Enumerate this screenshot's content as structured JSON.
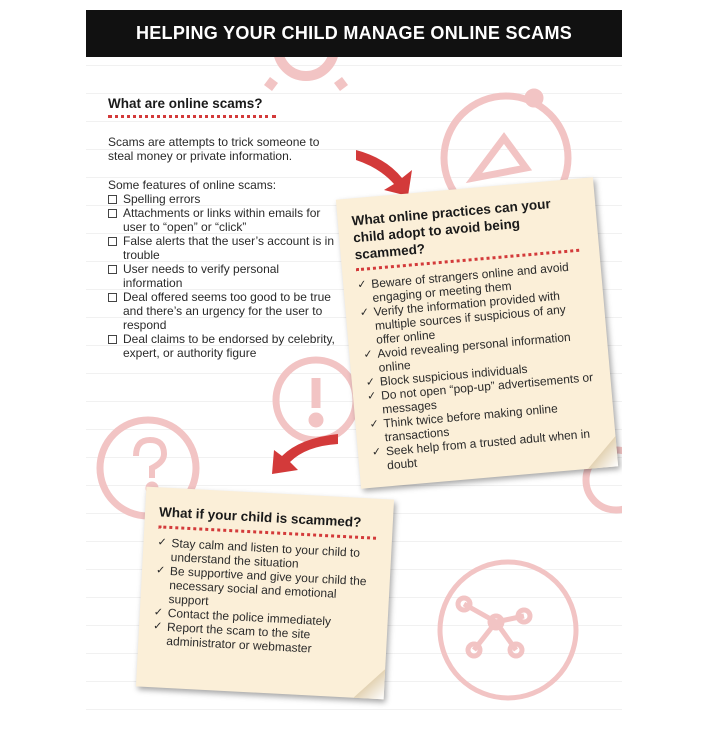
{
  "header": {
    "title": "HELPING YOUR CHILD MANAGE ONLINE SCAMS"
  },
  "section1": {
    "title": "What are online scams?",
    "intro": "Scams are attempts to trick someone to steal money or private information.",
    "features_title": "Some features of online scams:",
    "features": [
      "Spelling errors",
      "Attachments or links within emails for user to “open” or “click”",
      "False alerts that the user’s account is in trouble",
      "User needs to verify personal information",
      "Deal offered seems too good to be true and there’s an urgency for the user to respond",
      "Deal claims to be endorsed by celebrity, expert, or authority figure"
    ]
  },
  "note1": {
    "title": "What online practices can your child adopt to avoid being scammed?",
    "items": [
      "Beware of strangers online and avoid engaging or meeting them",
      "Verify the information provided with multiple sources if suspicious of any offer online",
      "Avoid revealing personal information online",
      "Block suspicious individuals",
      "Do not open “pop-up” advertisements or messages",
      "Think twice before making online transactions",
      "Seek help from a trusted adult when in doubt"
    ]
  },
  "note2": {
    "title": "What if your child is scammed?",
    "items": [
      "Stay calm and listen to your child to understand the situation",
      "Be supportive and give your child the necessary social and emotional support",
      "Contact the police immediately",
      "Report the scam to the site administrator or webmaster"
    ]
  },
  "colors": {
    "header_bg": "#111111",
    "accent_red": "#d33a3a",
    "note_bg": "#fbefd8",
    "deco_pink": "#f2c4c4"
  },
  "icons": [
    "gear-icon",
    "mouse-cursor-icon",
    "exclamation-icon",
    "question-mark-icon",
    "network-icon",
    "red-arrow-icon"
  ]
}
